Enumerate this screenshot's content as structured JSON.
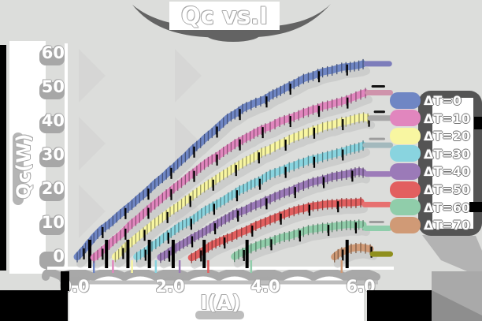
{
  "chart_data": {
    "type": "line",
    "title": "Qc vs.I",
    "xlabel": "I(A)",
    "ylabel": "Qc(W)",
    "xlim": [
      0,
      6.6
    ],
    "ylim": [
      0,
      62
    ],
    "xticks": [
      "0.0",
      "2.0",
      "4.0",
      "6.0"
    ],
    "xtick_values": [
      0,
      2,
      4,
      6
    ],
    "yticks": [
      "0",
      "10",
      "20",
      "30",
      "40",
      "50",
      "60"
    ],
    "ytick_values": [
      0,
      10,
      20,
      30,
      40,
      50,
      60
    ],
    "grid": false,
    "legend_position": "right",
    "style": "hand-drawn sketch, thick line bands with dense error-bar ticks and gray shadows",
    "series": [
      {
        "name": "ΔT=0",
        "color": "#6f86c4",
        "cap_color": "#7d7dbb",
        "points": [
          [
            0.05,
            0
          ],
          [
            0.4,
            6
          ],
          [
            0.8,
            11
          ],
          [
            1.2,
            16
          ],
          [
            1.6,
            21
          ],
          [
            2.0,
            26
          ],
          [
            2.4,
            31
          ],
          [
            2.8,
            36
          ],
          [
            3.2,
            41
          ],
          [
            3.6,
            44.5
          ],
          [
            4.0,
            47
          ],
          [
            4.4,
            50
          ],
          [
            4.8,
            52.5
          ],
          [
            5.2,
            54.5
          ],
          [
            5.6,
            56
          ],
          [
            6.05,
            57
          ]
        ],
        "cap": [
          6.12,
          6.6,
          57
        ]
      },
      {
        "name": "ΔT=10",
        "color": "#e186be",
        "cap_color": "#cf93ab",
        "points": [
          [
            0.4,
            0
          ],
          [
            0.8,
            5
          ],
          [
            1.2,
            10
          ],
          [
            1.6,
            15
          ],
          [
            2.0,
            19.5
          ],
          [
            2.4,
            24
          ],
          [
            2.8,
            28
          ],
          [
            3.2,
            32
          ],
          [
            3.6,
            35.5
          ],
          [
            4.0,
            38.5
          ],
          [
            4.4,
            41
          ],
          [
            4.8,
            43
          ],
          [
            5.2,
            45
          ],
          [
            5.6,
            46.5
          ],
          [
            6.1,
            48.5
          ]
        ],
        "cap": [
          6.15,
          6.62,
          48.5
        ]
      },
      {
        "name": "ΔT=20",
        "color": "#f8f6a1",
        "cap_color": "#a8a8a8",
        "points": [
          [
            0.85,
            0
          ],
          [
            1.2,
            4.5
          ],
          [
            1.6,
            9
          ],
          [
            2.0,
            13
          ],
          [
            2.4,
            17
          ],
          [
            2.8,
            21
          ],
          [
            3.2,
            24.5
          ],
          [
            3.6,
            28
          ],
          [
            4.0,
            31
          ],
          [
            4.4,
            33.5
          ],
          [
            4.8,
            36
          ],
          [
            5.2,
            38
          ],
          [
            5.6,
            39.5
          ],
          [
            6.15,
            41
          ]
        ],
        "cap": [
          6.2,
          6.62,
          41
        ]
      },
      {
        "name": "ΔT=30",
        "color": "#89d4df",
        "cap_color": "#a3b9bd",
        "points": [
          [
            1.3,
            0
          ],
          [
            1.7,
            4
          ],
          [
            2.1,
            8
          ],
          [
            2.5,
            11.5
          ],
          [
            2.9,
            15
          ],
          [
            3.3,
            18.5
          ],
          [
            3.7,
            21.5
          ],
          [
            4.1,
            24.5
          ],
          [
            4.5,
            27
          ],
          [
            4.9,
            29
          ],
          [
            5.3,
            30.5
          ],
          [
            5.7,
            32
          ],
          [
            6.05,
            33
          ]
        ],
        "cap": [
          6.1,
          6.62,
          33
        ]
      },
      {
        "name": "ΔT=40",
        "color": "#9b7ab8",
        "cap_color": "#9d7cb9",
        "points": [
          [
            1.8,
            0
          ],
          [
            2.2,
            3.5
          ],
          [
            2.6,
            7
          ],
          [
            3.0,
            10
          ],
          [
            3.4,
            13
          ],
          [
            3.8,
            15.5
          ],
          [
            4.2,
            18
          ],
          [
            4.6,
            20
          ],
          [
            5.0,
            22
          ],
          [
            5.4,
            23.5
          ],
          [
            5.8,
            24.5
          ],
          [
            6.05,
            25
          ]
        ],
        "cap": [
          6.12,
          6.6,
          24.5
        ]
      },
      {
        "name": "ΔT=50",
        "color": "#e25f5f",
        "cap_color": "#e77070",
        "points": [
          [
            2.45,
            0
          ],
          [
            2.8,
            3
          ],
          [
            3.2,
            6
          ],
          [
            3.6,
            8.5
          ],
          [
            4.0,
            11
          ],
          [
            4.4,
            13
          ],
          [
            4.8,
            14.5
          ],
          [
            5.2,
            15.5
          ],
          [
            5.6,
            16
          ],
          [
            6.0,
            16.3
          ]
        ],
        "cap": [
          6.08,
          6.6,
          15.5
        ]
      },
      {
        "name": "ΔT=60",
        "color": "#90cdaa",
        "cap_color": "#8fcdab",
        "points": [
          [
            3.35,
            0
          ],
          [
            3.7,
            2.5
          ],
          [
            4.1,
            4.5
          ],
          [
            4.5,
            6
          ],
          [
            4.9,
            7.5
          ],
          [
            5.3,
            8.5
          ],
          [
            5.7,
            9
          ],
          [
            6.05,
            9.5
          ]
        ],
        "cap": [
          6.1,
          6.6,
          8.5
        ]
      },
      {
        "name": "ΔT=70",
        "color": "#d09a76",
        "cap_color": "#8f8f1d",
        "points": [
          [
            5.45,
            0
          ],
          [
            5.6,
            1.5
          ],
          [
            5.8,
            2.6
          ],
          [
            6.0,
            3
          ],
          [
            6.2,
            2.4
          ]
        ],
        "cap": [
          6.25,
          6.62,
          0.9
        ]
      }
    ]
  },
  "colors": {
    "background": "#dcdddb",
    "label_text": "#ffffff",
    "label_outline": "#a6a6a6",
    "shadow_gray": "#a8a8a8",
    "dark_blob": "#5c5c5c",
    "black_marks": "#000000",
    "olive_cap": "#8f8f1d"
  }
}
